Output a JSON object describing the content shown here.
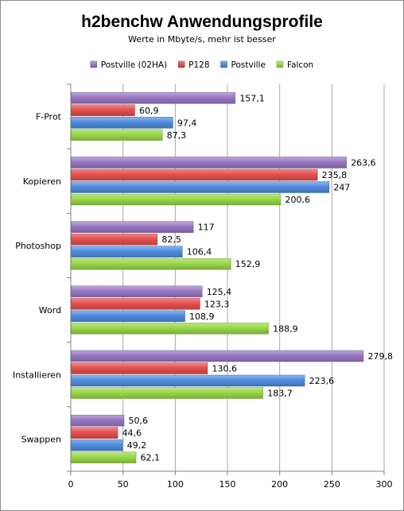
{
  "chart_data": {
    "type": "bar",
    "orientation": "horizontal",
    "title": "h2benchw Anwendungsprofile",
    "subtitle": "Werte in Mbyte/s,  mehr ist besser",
    "categories": [
      "F-Prot",
      "Kopieren",
      "Photoshop",
      "Word",
      "Installieren",
      "Swappen"
    ],
    "series": [
      {
        "name": "Postville (02HA)",
        "color": "#9977c4",
        "values": [
          157.1,
          263.6,
          117,
          125.4,
          279.8,
          50.6
        ],
        "labels": [
          "157,1",
          "263,6",
          "117",
          "125,4",
          "279,8",
          "50,6"
        ]
      },
      {
        "name": "P128",
        "color": "#e5504f",
        "values": [
          60.9,
          235.8,
          82.5,
          123.3,
          130.6,
          44.6
        ],
        "labels": [
          "60,9",
          "235,8",
          "82,5",
          "123,3",
          "130,6",
          "44,6"
        ]
      },
      {
        "name": "Postville",
        "color": "#4f8de0",
        "values": [
          97.4,
          247,
          106.4,
          108.9,
          223.6,
          49.2
        ],
        "labels": [
          "97,4",
          "247",
          "106,4",
          "108,9",
          "223,6",
          "49,2"
        ]
      },
      {
        "name": "Falcon",
        "color": "#9ad84a",
        "values": [
          87.3,
          200.6,
          152.9,
          188.9,
          183.7,
          62.1
        ],
        "labels": [
          "87,3",
          "200,6",
          "152,9",
          "188,9",
          "183,7",
          "62,1"
        ]
      }
    ],
    "xlim": [
      0,
      300
    ],
    "xticks": [
      "0",
      "50",
      "100",
      "150",
      "200",
      "250",
      "300"
    ],
    "grid": true,
    "legend_position": "top"
  }
}
